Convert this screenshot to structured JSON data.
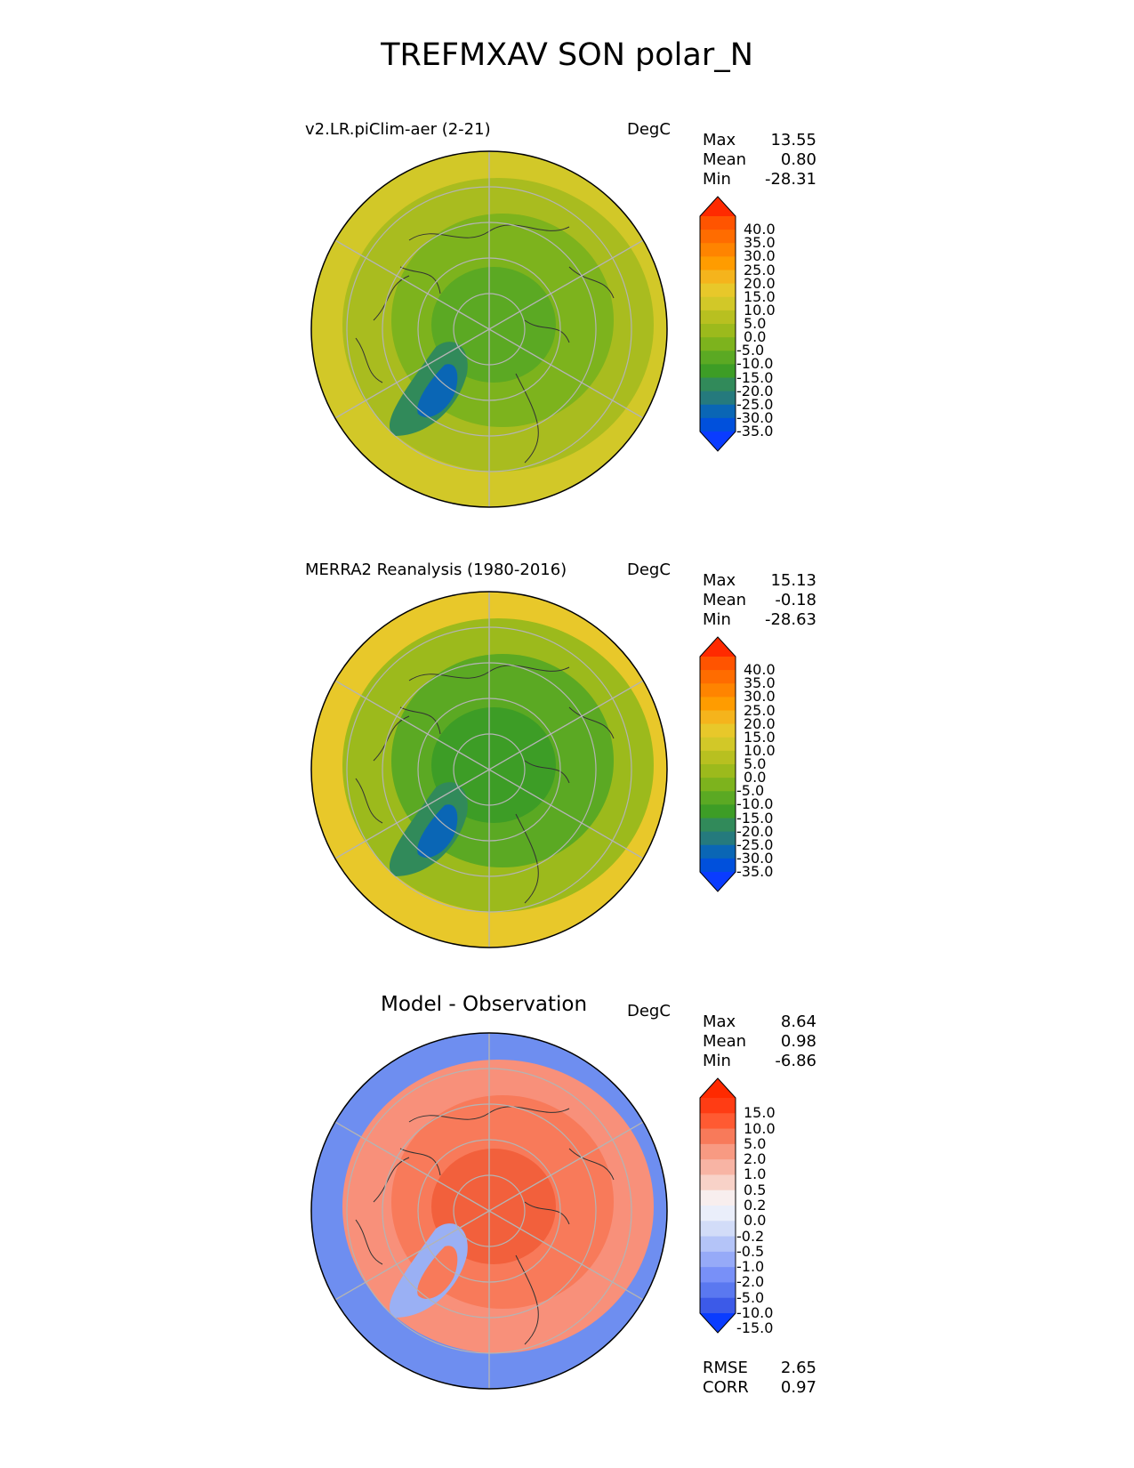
{
  "figure": {
    "title": "TREFMXAV SON polar_N"
  },
  "panels": [
    {
      "title": "v2.LR.piClim-aer (2-21)",
      "units": "DegC",
      "stats": [
        {
          "label": "Max",
          "value": "13.55"
        },
        {
          "label": "Mean",
          "value": "0.80"
        },
        {
          "label": "Min",
          "value": "-28.31"
        }
      ],
      "colorbar": {
        "labels": [
          "40.0",
          "35.0",
          "30.0",
          "25.0",
          "20.0",
          "15.0",
          "10.0",
          "5.0",
          "0.0",
          "-5.0",
          "-10.0",
          "-15.0",
          "-20.0",
          "-25.0",
          "-30.0",
          "-35.0"
        ],
        "colors": [
          "#ff2a00",
          "#ff5400",
          "#ff6c00",
          "#ff8400",
          "#ff9c00",
          "#f5b41c",
          "#e8c82a",
          "#d2c828",
          "#b8c020",
          "#9cba1c",
          "#7db31d",
          "#5ba923",
          "#3d9d26",
          "#318a5a",
          "#257a7d",
          "#0a66b5",
          "#0050dc",
          "#0a3cff"
        ]
      },
      "map": {
        "outer": "#d2c828",
        "mid": "#a9bc1f",
        "inner": "#7db31d",
        "core": "#5ba923",
        "greenland_outer": "#318a5a",
        "greenland_inner": "#0a66b5"
      }
    },
    {
      "title": "MERRA2 Reanalysis (1980-2016)",
      "units": "DegC",
      "stats": [
        {
          "label": "Max",
          "value": "15.13"
        },
        {
          "label": "Mean",
          "value": "-0.18"
        },
        {
          "label": "Min",
          "value": "-28.63"
        }
      ],
      "colorbar": {
        "labels": [
          "40.0",
          "35.0",
          "30.0",
          "25.0",
          "20.0",
          "15.0",
          "10.0",
          "5.0",
          "0.0",
          "-5.0",
          "-10.0",
          "-15.0",
          "-20.0",
          "-25.0",
          "-30.0",
          "-35.0"
        ],
        "colors": [
          "#ff2a00",
          "#ff5400",
          "#ff6c00",
          "#ff8400",
          "#ff9c00",
          "#f5b41c",
          "#e8c82a",
          "#d2c828",
          "#b8c020",
          "#9cba1c",
          "#7db31d",
          "#5ba923",
          "#3d9d26",
          "#318a5a",
          "#257a7d",
          "#0a66b5",
          "#0050dc",
          "#0a3cff"
        ]
      },
      "map": {
        "outer": "#e8c82a",
        "mid": "#9cba1c",
        "inner": "#5ba923",
        "core": "#3d9d26",
        "greenland_outer": "#318a5a",
        "greenland_inner": "#0a66b5"
      }
    },
    {
      "title": "Model - Observation",
      "units": "DegC",
      "stats": [
        {
          "label": "Max",
          "value": "8.64"
        },
        {
          "label": "Mean",
          "value": "0.98"
        },
        {
          "label": "Min",
          "value": "-6.86"
        }
      ],
      "colorbar": {
        "labels": [
          "15.0",
          "10.0",
          "5.0",
          "2.0",
          "1.0",
          "0.5",
          "0.2",
          "0.0",
          "-0.2",
          "-0.5",
          "-1.0",
          "-2.0",
          "-5.0",
          "-10.0",
          "-15.0"
        ],
        "colors": [
          "#ff2a00",
          "#ff3c14",
          "#ff5a32",
          "#f87a5a",
          "#f89a82",
          "#f8b4a4",
          "#f8d2c8",
          "#f8eeee",
          "#eaeefa",
          "#d2dcf8",
          "#b4c4f8",
          "#96aaf8",
          "#7890f8",
          "#5a78f0",
          "#3c5ae8",
          "#0a3cff"
        ]
      },
      "map": {
        "outer": "#6e8ef0",
        "mid": "#f8907a",
        "inner": "#f87a5a",
        "core": "#f2603c",
        "greenland_outer": "#9ab0f4",
        "greenland_inner": "#f87a5a"
      }
    }
  ],
  "metrics": [
    {
      "label": "RMSE",
      "value": "2.65"
    },
    {
      "label": "CORR",
      "value": "0.97"
    }
  ]
}
